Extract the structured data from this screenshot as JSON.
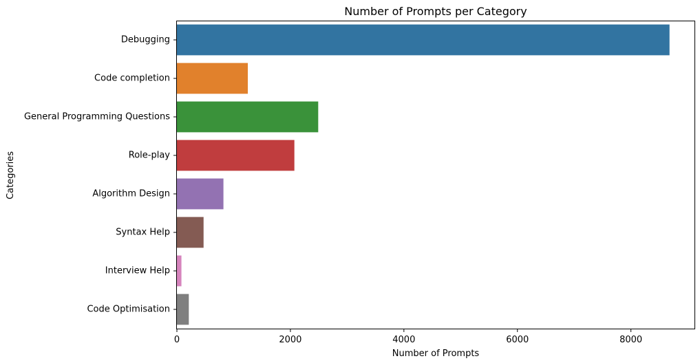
{
  "chart_data": {
    "type": "bar",
    "orientation": "horizontal",
    "title": "Number of Prompts per Category",
    "xlabel": "Number of Prompts",
    "ylabel": "Categories",
    "categories": [
      "Debugging",
      "Code completion",
      "General Programming Questions",
      "Role-play",
      "Algorithm Design",
      "Syntax Help",
      "Interview Help",
      "Code Optimisation"
    ],
    "values": [
      8680,
      1250,
      2490,
      2070,
      820,
      470,
      80,
      210
    ],
    "colors": [
      "#3274a1",
      "#e1812c",
      "#3a923a",
      "#c03d3e",
      "#9372b2",
      "#845b53",
      "#d684bd",
      "#7f7f7f"
    ],
    "xlim": [
      0,
      9120
    ],
    "xticks": [
      0,
      2000,
      4000,
      6000,
      8000
    ],
    "grid": false,
    "legend": false
  }
}
